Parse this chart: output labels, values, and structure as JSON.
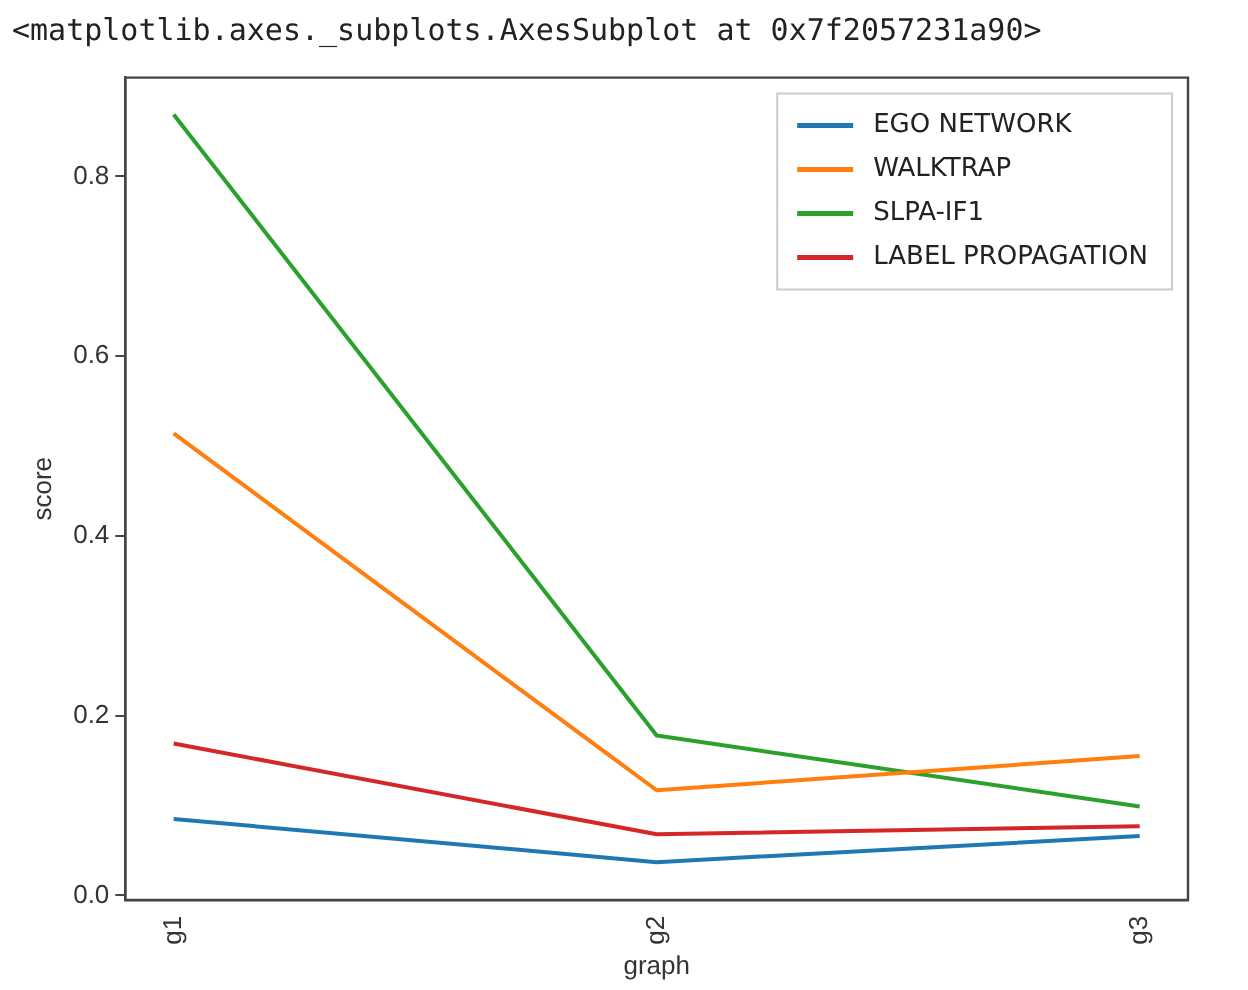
{
  "chart_data": {
    "type": "line",
    "title": "<matplotlib.axes._subplots.AxesSubplot at 0x7f2057231a90>",
    "xlabel": "graph",
    "ylabel": "score",
    "categories": [
      "g1",
      "g2",
      "g3"
    ],
    "series": [
      {
        "name": "EGO NETWORK",
        "color": "#1f77b4",
        "values": [
          0.085,
          0.037,
          0.066
        ]
      },
      {
        "name": "WALKTRAP",
        "color": "#ff7f0e",
        "values": [
          0.514,
          0.117,
          0.155
        ]
      },
      {
        "name": "SLPA-IF1",
        "color": "#2ca02c",
        "values": [
          0.869,
          0.178,
          0.099
        ]
      },
      {
        "name": "LABEL PROPAGATION",
        "color": "#d62728",
        "values": [
          0.169,
          0.068,
          0.077
        ]
      }
    ],
    "ylim": [
      -0.005,
      0.91
    ],
    "yticks": [
      {
        "value": 0,
        "label": "0.0"
      },
      {
        "value": 0.2,
        "label": "0.2"
      },
      {
        "value": 0.4,
        "label": "0.4"
      },
      {
        "value": 0.6,
        "label": "0.6"
      },
      {
        "value": 0.8,
        "label": "0.8"
      }
    ],
    "grid": false,
    "legend": "top right",
    "marker": "none",
    "line_style": "solid"
  }
}
